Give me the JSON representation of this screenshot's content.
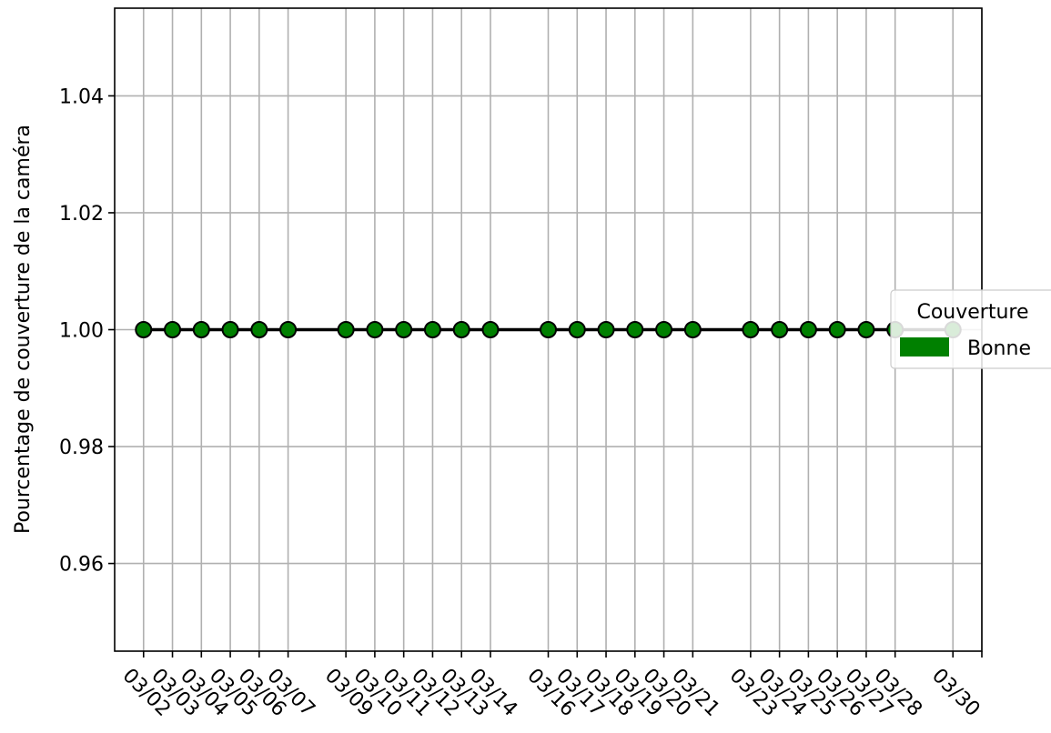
{
  "chart_data": {
    "type": "line",
    "title": "",
    "xlabel": "",
    "ylabel": "Pourcentage de couverture de la caméra",
    "x_type": "date",
    "x_tick_labels": [
      "03/02",
      "03/03",
      "03/04",
      "03/05",
      "03/06",
      "03/07",
      "03/09",
      "03/10",
      "03/11",
      "03/12",
      "03/13",
      "03/14",
      "03/16",
      "03/17",
      "03/18",
      "03/19",
      "03/20",
      "03/21",
      "03/23",
      "03/24",
      "03/25",
      "03/26",
      "03/27",
      "03/28",
      "03/30"
    ],
    "ylim": [
      0.945,
      1.055
    ],
    "y_ticks": [
      "0.96",
      "0.98",
      "1.00",
      "1.02",
      "1.04"
    ],
    "grid": true,
    "series": [
      {
        "x": [
          "03/02",
          "03/03",
          "03/04",
          "03/05",
          "03/06",
          "03/07",
          "03/09",
          "03/10",
          "03/11",
          "03/12",
          "03/13",
          "03/14",
          "03/16",
          "03/17",
          "03/18",
          "03/19",
          "03/20",
          "03/21",
          "03/23",
          "03/24",
          "03/25",
          "03/26",
          "03/27",
          "03/28",
          "03/30"
        ],
        "y": [
          1,
          1,
          1,
          1,
          1,
          1,
          1,
          1,
          1,
          1,
          1,
          1,
          1,
          1,
          1,
          1,
          1,
          1,
          1,
          1,
          1,
          1,
          1,
          1,
          1
        ],
        "color": "#008000",
        "line_color": "#000000"
      }
    ],
    "legend": {
      "title": "Couverture",
      "placement": "right",
      "entries": [
        {
          "label": "Bonne",
          "color": "#008000"
        }
      ]
    }
  }
}
